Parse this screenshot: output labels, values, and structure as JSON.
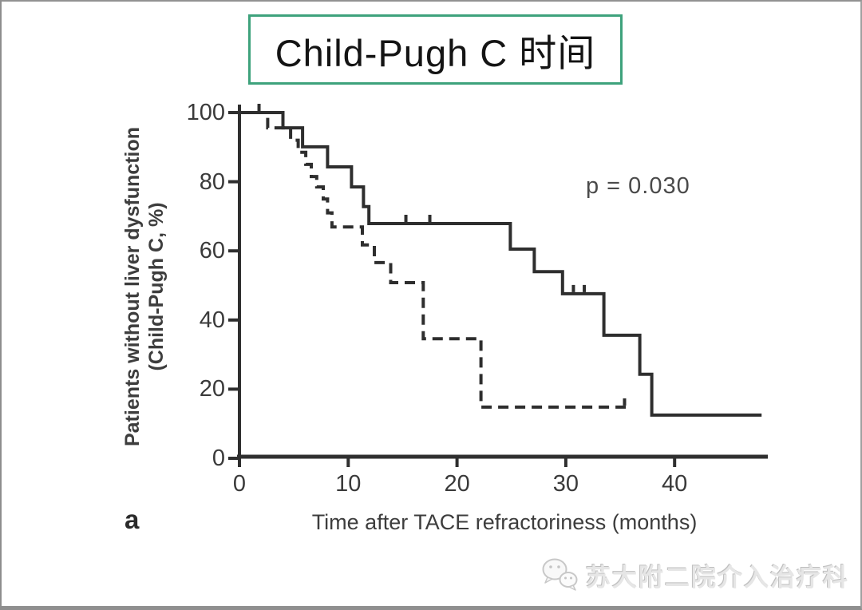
{
  "slide": {
    "title": "Child-Pugh C 时间",
    "panel_label": "a",
    "watermark": "苏大附二院介入治疗科",
    "watermark_icon": "wechat-bubbles-icon",
    "colors": {
      "title_box_border": "#3ea27c",
      "curve_line": "#2e2e2e",
      "axis_line": "#2f2f2f",
      "text": "#3d3d3d",
      "watermark_text": "#e6e6e6"
    }
  },
  "chart_data": {
    "type": "line",
    "subtype": "kaplan-meier-step",
    "title": "Child-Pugh C 时间",
    "xlabel": "Time after TACE refractoriness (months)",
    "ylabel_lines": [
      "Patients without liver dysfunction",
      "(Child-Pugh C, %)"
    ],
    "xlim": [
      0,
      48.5
    ],
    "ylim": [
      0,
      100
    ],
    "x_ticks": [
      0,
      10,
      20,
      30,
      40
    ],
    "y_ticks": [
      0,
      20,
      40,
      60,
      80,
      100
    ],
    "grid": false,
    "legend": "none",
    "annotation": "p = 0.030",
    "series": [
      {
        "name": "solid-group",
        "style": "solid",
        "points": [
          [
            0,
            100
          ],
          [
            4.0,
            100
          ],
          [
            4.0,
            95.6
          ],
          [
            5.8,
            95.6
          ],
          [
            5.8,
            90.1
          ],
          [
            8.1,
            90.1
          ],
          [
            8.1,
            84.3
          ],
          [
            10.3,
            84.3
          ],
          [
            10.3,
            78.5
          ],
          [
            11.4,
            78.5
          ],
          [
            11.4,
            72.8
          ],
          [
            11.9,
            72.8
          ],
          [
            11.9,
            67.9
          ],
          [
            24.9,
            67.9
          ],
          [
            24.9,
            60.5
          ],
          [
            27.1,
            60.5
          ],
          [
            27.1,
            54.0
          ],
          [
            29.7,
            54.0
          ],
          [
            29.7,
            47.6
          ],
          [
            33.5,
            47.6
          ],
          [
            33.5,
            35.6
          ],
          [
            36.8,
            35.6
          ],
          [
            36.8,
            24.3
          ],
          [
            37.9,
            24.3
          ],
          [
            37.9,
            12.5
          ],
          [
            48.0,
            12.5
          ]
        ],
        "censor_marks": [
          [
            1.8,
            100
          ],
          [
            15.3,
            67.9
          ],
          [
            17.5,
            67.9
          ],
          [
            30.7,
            47.6
          ],
          [
            31.7,
            47.6
          ]
        ]
      },
      {
        "name": "dashed-group",
        "style": "dashed",
        "points": [
          [
            0,
            100
          ],
          [
            2.6,
            100
          ],
          [
            2.6,
            95.6
          ],
          [
            4.7,
            95.6
          ],
          [
            4.7,
            92.0
          ],
          [
            5.4,
            92.0
          ],
          [
            5.4,
            88.5
          ],
          [
            6.1,
            88.5
          ],
          [
            6.1,
            85.0
          ],
          [
            6.6,
            85.0
          ],
          [
            6.6,
            81.5
          ],
          [
            7.1,
            81.5
          ],
          [
            7.1,
            78.5
          ],
          [
            7.7,
            78.5
          ],
          [
            7.7,
            75.0
          ],
          [
            8.1,
            75.0
          ],
          [
            8.1,
            71.0
          ],
          [
            8.5,
            71.0
          ],
          [
            8.5,
            66.9
          ],
          [
            11.3,
            66.9
          ],
          [
            11.3,
            61.7
          ],
          [
            12.4,
            61.7
          ],
          [
            12.4,
            56.6
          ],
          [
            13.9,
            56.6
          ],
          [
            13.9,
            50.8
          ],
          [
            16.9,
            50.8
          ],
          [
            16.9,
            34.6
          ],
          [
            22.2,
            34.6
          ],
          [
            22.2,
            14.8
          ],
          [
            35.9,
            14.8
          ]
        ],
        "censor_marks": [
          [
            35.4,
            14.8
          ]
        ]
      }
    ]
  }
}
